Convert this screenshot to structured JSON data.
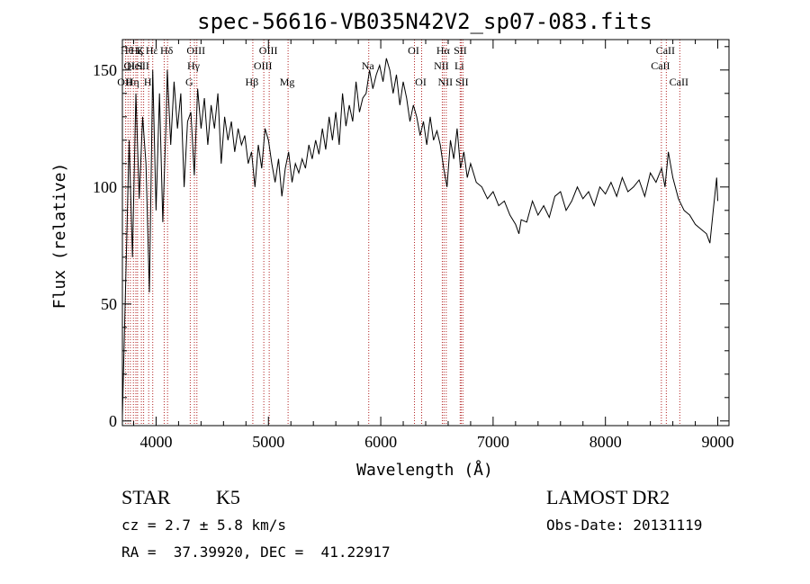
{
  "chart_data": {
    "type": "line",
    "title": "spec-56616-VB035N42V2_sp07-083.fits",
    "xlabel": "Wavelength (Å)",
    "ylabel": "Flux (relative)",
    "xlim": [
      3700,
      9100
    ],
    "ylim": [
      -2,
      163
    ],
    "xticks": [
      4000,
      5000,
      6000,
      7000,
      8000,
      9000
    ],
    "xtick_labels": [
      "4000",
      "5000",
      "6000",
      "7000",
      "8000",
      "9000"
    ],
    "yticks": [
      0,
      50,
      100,
      150
    ],
    "ytick_labels": [
      "0",
      "50",
      "100",
      "150"
    ],
    "grid": false,
    "series": [
      {
        "color": "#000000",
        "x": [
          3700,
          3730,
          3760,
          3790,
          3820,
          3850,
          3880,
          3910,
          3940,
          3970,
          4000,
          4030,
          4060,
          4090,
          4100,
          4130,
          4160,
          4190,
          4220,
          4250,
          4280,
          4310,
          4340,
          4370,
          4400,
          4430,
          4460,
          4490,
          4520,
          4550,
          4580,
          4610,
          4640,
          4670,
          4700,
          4730,
          4760,
          4790,
          4820,
          4850,
          4880,
          4910,
          4940,
          4970,
          5000,
          5030,
          5060,
          5090,
          5120,
          5150,
          5180,
          5210,
          5240,
          5270,
          5300,
          5330,
          5360,
          5390,
          5420,
          5450,
          5480,
          5510,
          5540,
          5570,
          5600,
          5630,
          5660,
          5690,
          5720,
          5750,
          5780,
          5810,
          5840,
          5870,
          5900,
          5930,
          5960,
          5990,
          6020,
          6050,
          6080,
          6110,
          6140,
          6170,
          6200,
          6230,
          6260,
          6290,
          6320,
          6350,
          6380,
          6410,
          6440,
          6470,
          6500,
          6530,
          6560,
          6590,
          6620,
          6650,
          6680,
          6710,
          6740,
          6770,
          6800,
          6850,
          6900,
          6950,
          7000,
          7050,
          7100,
          7150,
          7200,
          7230,
          7250,
          7300,
          7350,
          7400,
          7450,
          7500,
          7550,
          7600,
          7650,
          7700,
          7750,
          7800,
          7850,
          7900,
          7950,
          8000,
          8050,
          8100,
          8150,
          8200,
          8250,
          8300,
          8350,
          8400,
          8450,
          8500,
          8530,
          8560,
          8600,
          8650,
          8700,
          8750,
          8800,
          8850,
          8900,
          8930,
          8960,
          8990,
          9000
        ],
        "values": [
          2,
          60,
          120,
          70,
          140,
          95,
          130,
          110,
          55,
          150,
          90,
          140,
          85,
          130,
          150,
          118,
          145,
          125,
          140,
          100,
          128,
          132,
          105,
          142,
          125,
          138,
          118,
          135,
          125,
          140,
          110,
          130,
          120,
          128,
          115,
          125,
          118,
          122,
          110,
          115,
          100,
          118,
          108,
          125,
          120,
          110,
          102,
          112,
          96,
          108,
          115,
          102,
          110,
          106,
          112,
          108,
          118,
          112,
          120,
          114,
          125,
          116,
          130,
          120,
          132,
          118,
          140,
          126,
          135,
          128,
          145,
          132,
          138,
          140,
          150,
          142,
          148,
          152,
          145,
          155,
          150,
          140,
          148,
          135,
          145,
          138,
          128,
          135,
          130,
          122,
          128,
          118,
          130,
          120,
          124,
          118,
          108,
          100,
          120,
          112,
          125,
          108,
          115,
          104,
          110,
          102,
          100,
          95,
          98,
          92,
          94,
          88,
          84,
          80,
          86,
          85,
          94,
          88,
          92,
          87,
          96,
          98,
          90,
          94,
          100,
          95,
          98,
          92,
          100,
          97,
          102,
          96,
          104,
          98,
          100,
          103,
          96,
          106,
          102,
          108,
          100,
          115,
          104,
          95,
          90,
          88,
          84,
          82,
          80,
          76,
          90,
          104,
          94
        ]
      }
    ],
    "line_markers": [
      {
        "x": 3729,
        "label": "OII",
        "row": 2
      },
      {
        "x": 3750,
        "label": "Hθ",
        "row": 0
      },
      {
        "x": 3771,
        "label": "OI",
        "row": 1
      },
      {
        "x": 3798,
        "label": "Hη",
        "row": 2
      },
      {
        "x": 3820,
        "label": "HeI",
        "row": 1
      },
      {
        "x": 3835,
        "label": "Hζ",
        "row": 0
      },
      {
        "x": 3869,
        "label": "K",
        "row": 0
      },
      {
        "x": 3889,
        "label": "SII",
        "row": 1
      },
      {
        "x": 3934,
        "label": "H",
        "row": 2
      },
      {
        "x": 3970,
        "label": "Hε",
        "row": 0
      },
      {
        "x": 4072,
        "label": "",
        "row": 0
      },
      {
        "x": 4102,
        "label": "Hδ",
        "row": 0
      },
      {
        "x": 4304,
        "label": "G",
        "row": 2
      },
      {
        "x": 4341,
        "label": "Hγ",
        "row": 1
      },
      {
        "x": 4363,
        "label": "OIII",
        "row": 0
      },
      {
        "x": 4861,
        "label": "Hβ",
        "row": 2
      },
      {
        "x": 4959,
        "label": "OIII",
        "row": 1
      },
      {
        "x": 5007,
        "label": "OIII",
        "row": 0
      },
      {
        "x": 5175,
        "label": "Mg",
        "row": 2
      },
      {
        "x": 5893,
        "label": "Na",
        "row": 1
      },
      {
        "x": 6300,
        "label": "OI",
        "row": 0
      },
      {
        "x": 6364,
        "label": "OI",
        "row": 2
      },
      {
        "x": 6548,
        "label": "NII",
        "row": 1
      },
      {
        "x": 6563,
        "label": "Hα",
        "row": 0
      },
      {
        "x": 6583,
        "label": "NII",
        "row": 2
      },
      {
        "x": 6707,
        "label": "Li",
        "row": 1
      },
      {
        "x": 6716,
        "label": "SII",
        "row": 0
      },
      {
        "x": 6731,
        "label": "SII",
        "row": 2
      },
      {
        "x": 8498,
        "label": "CaII",
        "row": 1
      },
      {
        "x": 8542,
        "label": "CaII",
        "row": 0
      },
      {
        "x": 8662,
        "label": "CaII",
        "row": 2
      }
    ],
    "marker_color": "#b22222"
  },
  "info": {
    "object_class": "STAR",
    "subclass": "K5",
    "survey": "LAMOST DR2",
    "redshift_line": "cz = 2.7 ± 5.8 km/s",
    "obs_date_line": "Obs-Date: 20131119",
    "coords_line": "RA =  37.39920, DEC =  41.22917"
  }
}
